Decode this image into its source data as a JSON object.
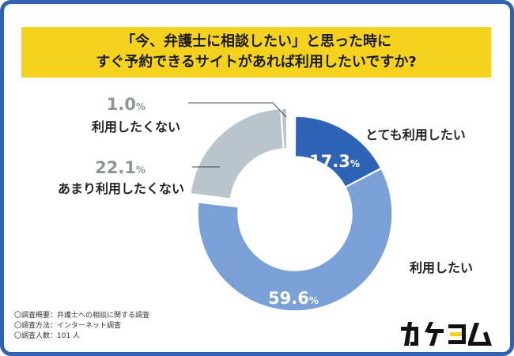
{
  "title": {
    "line1": "「今、弁護士に相談したい」と思った時に",
    "line2": "すぐ予約できるサイトがあれば利用したいですか?"
  },
  "chart_data": {
    "type": "pie",
    "donut": true,
    "title": "「今、弁護士に相談したい」と思った時にすぐ予約できるサイトがあれば利用したいですか?",
    "unit": "%",
    "slices": [
      {
        "label": "とても利用したい",
        "value": 17.3,
        "color": "#2f63b6",
        "exploded": false
      },
      {
        "label": "利用したい",
        "value": 59.6,
        "color": "#7aa0d8",
        "exploded": false
      },
      {
        "label": "あまり利用したくない",
        "value": 22.1,
        "color": "#b9c5cc",
        "exploded": true
      },
      {
        "label": "利用したくない",
        "value": 1.0,
        "color": "#b9c5cc",
        "exploded": true
      }
    ]
  },
  "notes": [
    "〇調査概要：弁護士への相談に関する調査",
    "〇調査方法：インターネット調査",
    "〇調査人数：101 人"
  ],
  "logo": {
    "text": "カケヨム",
    "color": "#111111",
    "accent": "#f5d21e"
  }
}
